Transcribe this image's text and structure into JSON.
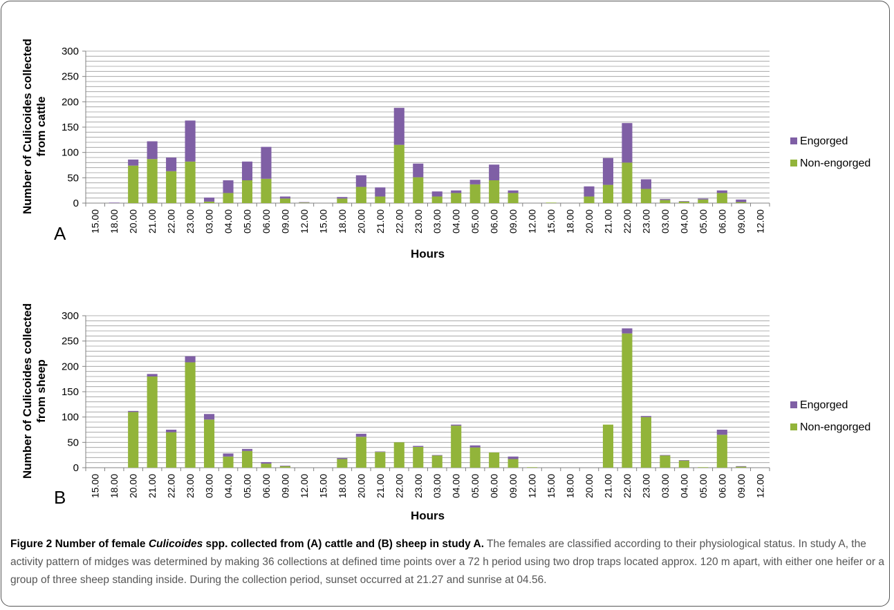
{
  "chart_data": [
    {
      "type": "bar",
      "stacked": true,
      "panel_label": "A",
      "ylabel": "Number of Culicoides collected from cattle",
      "xlabel": "Hours",
      "ylim": [
        0,
        300
      ],
      "yticks": [
        0,
        50,
        100,
        150,
        200,
        250,
        300
      ],
      "grid": true,
      "legend_position": "right",
      "categories": [
        "15.00",
        "18.00",
        "20.00",
        "21.00",
        "22.00",
        "23.00",
        "03.00",
        "04.00",
        "05.00",
        "06.00",
        "09.00",
        "12.00",
        "15.00",
        "18.00",
        "20.00",
        "21.00",
        "22.00",
        "23.00",
        "03.00",
        "04.00",
        "05.00",
        "06.00",
        "09.00",
        "12.00",
        "15.00",
        "18.00",
        "20.00",
        "21.00",
        "22.00",
        "23.00",
        "03.00",
        "04.00",
        "05.00",
        "06.00",
        "09.00",
        "12.00"
      ],
      "series": [
        {
          "name": "Non-engorged",
          "color": "#92b43a",
          "values": [
            0,
            0,
            74,
            87,
            63,
            82,
            3,
            20,
            45,
            48,
            9,
            1,
            0,
            9,
            32,
            13,
            115,
            51,
            13,
            20,
            37,
            45,
            20,
            0,
            1,
            0,
            13,
            36,
            80,
            28,
            6,
            3,
            7,
            20,
            2,
            0
          ]
        },
        {
          "name": "Engorged",
          "color": "#7f5fa5",
          "values": [
            0,
            1,
            12,
            35,
            27,
            81,
            8,
            25,
            37,
            63,
            4,
            1,
            0,
            3,
            23,
            18,
            73,
            27,
            10,
            5,
            9,
            31,
            5,
            0,
            0,
            0,
            20,
            53,
            78,
            19,
            2,
            1,
            2,
            5,
            5,
            0
          ]
        }
      ]
    },
    {
      "type": "bar",
      "stacked": true,
      "panel_label": "B",
      "ylabel": "Number of Culicoides collected from sheep",
      "xlabel": "Hours",
      "ylim": [
        0,
        300
      ],
      "yticks": [
        0,
        50,
        100,
        150,
        200,
        250,
        300
      ],
      "grid": true,
      "legend_position": "right",
      "categories": [
        "15.00",
        "18.00",
        "20.00",
        "21.00",
        "22.00",
        "23.00",
        "03.00",
        "04.00",
        "05.00",
        "06.00",
        "09.00",
        "12.00",
        "15.00",
        "18.00",
        "20.00",
        "21.00",
        "22.00",
        "23.00",
        "03.00",
        "04.00",
        "05.00",
        "06.00",
        "09.00",
        "12.00",
        "15.00",
        "18.00",
        "20.00",
        "21.00",
        "22.00",
        "23.00",
        "03.00",
        "04.00",
        "05.00",
        "06.00",
        "09.00",
        "12.00"
      ],
      "series": [
        {
          "name": "Non-engorged",
          "color": "#92b43a",
          "values": [
            0,
            0,
            110,
            180,
            70,
            208,
            95,
            22,
            33,
            8,
            3,
            0,
            0,
            17,
            61,
            31,
            50,
            41,
            24,
            83,
            40,
            30,
            17,
            1,
            0,
            0,
            0,
            85,
            265,
            100,
            24,
            14,
            1,
            65,
            2,
            0
          ]
        },
        {
          "name": "Engorged",
          "color": "#7f5fa5",
          "values": [
            0,
            0,
            2,
            5,
            5,
            12,
            11,
            6,
            4,
            3,
            1,
            0,
            0,
            2,
            6,
            1,
            0,
            2,
            1,
            2,
            4,
            0,
            5,
            0,
            0,
            0,
            0,
            0,
            10,
            2,
            1,
            1,
            0,
            10,
            1,
            0
          ]
        }
      ]
    }
  ],
  "caption": {
    "lead_prefix": "Figure 2 Number of female ",
    "lead_italic": "Culicoides",
    "lead_suffix": " spp. collected from (A) cattle and (B) sheep in study A.",
    "body": " The females are classified according to their physiological status. In study A, the activity pattern of midges was determined by making 36 collections at defined time points over a 72 h period using two drop traps located approx. 120 m apart, with either one heifer or a group of three sheep standing inside. During the collection period, sunset occurred at 21.27 and sunrise at 04.56."
  }
}
